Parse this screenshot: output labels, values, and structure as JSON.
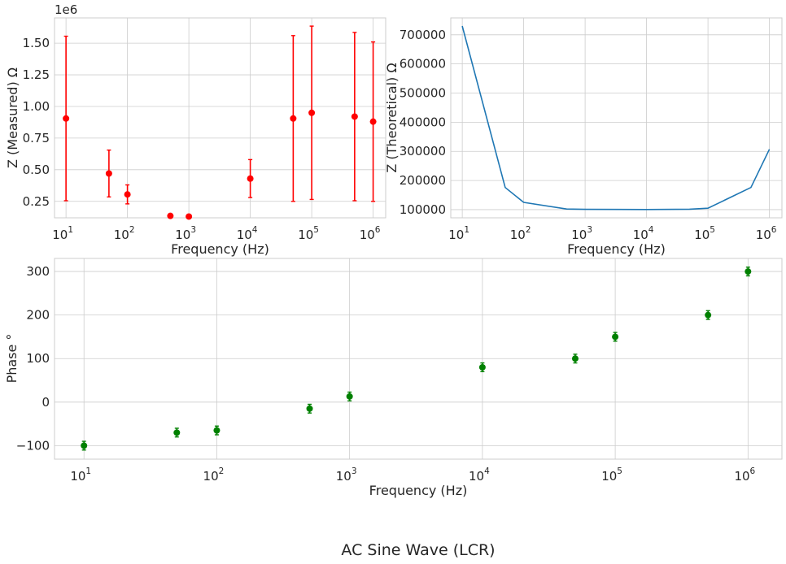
{
  "figure": {
    "suptitle": "AC Sine Wave (LCR)"
  },
  "chart_data": [
    {
      "type": "scatter",
      "xscale": "log",
      "xlim": [
        6.5,
        1600000
      ],
      "ylim": [
        0.12,
        1.7
      ],
      "xlabel": "Frequency (Hz)",
      "ylabel": "Z (Measured) Ω",
      "offset_text": "1e6",
      "yticks": [
        "0.25",
        "0.50",
        "0.75",
        "1.00",
        "1.25",
        "1.50"
      ],
      "ytick_values": [
        0.25,
        0.5,
        0.75,
        1.0,
        1.25,
        1.5
      ],
      "xticks": [
        {
          "base": "10",
          "exp": "1"
        },
        {
          "base": "10",
          "exp": "2"
        },
        {
          "base": "10",
          "exp": "3"
        },
        {
          "base": "10",
          "exp": "4"
        },
        {
          "base": "10",
          "exp": "5"
        },
        {
          "base": "10",
          "exp": "6"
        }
      ],
      "xtick_values": [
        10,
        100,
        1000,
        10000,
        100000,
        1000000
      ],
      "grid": true,
      "color": "#ff0000",
      "x": [
        10,
        50,
        100,
        500,
        1000,
        10000,
        50000,
        100000,
        500000,
        1000000
      ],
      "y": [
        0.905,
        0.47,
        0.305,
        0.135,
        0.13,
        0.43,
        0.905,
        0.95,
        0.92,
        0.88
      ],
      "yerr": [
        0.65,
        0.185,
        0.075,
        0.0,
        0.0,
        0.15,
        0.655,
        0.685,
        0.665,
        0.63
      ]
    },
    {
      "type": "line",
      "xscale": "log",
      "xlim": [
        6.5,
        1600000
      ],
      "ylim": [
        72000,
        758000
      ],
      "xlabel": "Frequency (Hz)",
      "ylabel": "Z (Theoretical)  Ω",
      "yticks": [
        "100000",
        "200000",
        "300000",
        "400000",
        "500000",
        "600000",
        "700000"
      ],
      "ytick_values": [
        100000,
        200000,
        300000,
        400000,
        500000,
        600000,
        700000
      ],
      "xticks": [
        {
          "base": "10",
          "exp": "1"
        },
        {
          "base": "10",
          "exp": "2"
        },
        {
          "base": "10",
          "exp": "3"
        },
        {
          "base": "10",
          "exp": "4"
        },
        {
          "base": "10",
          "exp": "5"
        },
        {
          "base": "10",
          "exp": "6"
        }
      ],
      "xtick_values": [
        10,
        100,
        1000,
        10000,
        100000,
        1000000
      ],
      "grid": true,
      "color": "#1f77b4",
      "x": [
        10,
        50,
        100,
        500,
        1000,
        10000,
        50000,
        100000,
        500000,
        1000000
      ],
      "y": [
        730000,
        176000,
        125000,
        102000,
        101000,
        100500,
        101500,
        105000,
        176000,
        307000
      ]
    },
    {
      "type": "scatter",
      "xscale": "log",
      "xlim": [
        6,
        1800000
      ],
      "ylim": [
        -131,
        330
      ],
      "xlabel": "Frequency (Hz)",
      "ylabel": "Phase  °",
      "yticks": [
        "−100",
        "0",
        "100",
        "200",
        "300"
      ],
      "ytick_values": [
        -100,
        0,
        100,
        200,
        300
      ],
      "xticks": [
        {
          "base": "10",
          "exp": "1"
        },
        {
          "base": "10",
          "exp": "2"
        },
        {
          "base": "10",
          "exp": "3"
        },
        {
          "base": "10",
          "exp": "4"
        },
        {
          "base": "10",
          "exp": "5"
        },
        {
          "base": "10",
          "exp": "6"
        }
      ],
      "xtick_values": [
        10,
        100,
        1000,
        10000,
        100000,
        1000000
      ],
      "grid": true,
      "color": "#008000",
      "x": [
        10,
        50,
        100,
        500,
        1000,
        10000,
        50000,
        100000,
        500000,
        1000000
      ],
      "y": [
        -100,
        -70,
        -65,
        -15,
        13,
        80,
        100,
        150,
        200,
        300
      ],
      "yerr": [
        10,
        10,
        10,
        10,
        10,
        10,
        10,
        10,
        10,
        10
      ]
    }
  ]
}
